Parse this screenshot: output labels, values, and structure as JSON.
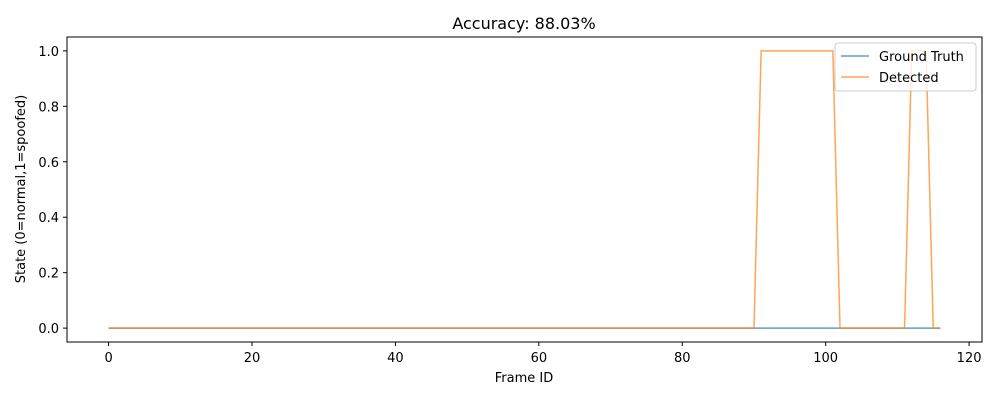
{
  "chart_data": {
    "type": "line",
    "title": "Accuracy: 88.03%",
    "xlabel": "Frame ID",
    "ylabel": "State (0=normal,1=spoofed)",
    "xlim": [
      -5.8,
      121.8
    ],
    "ylim": [
      -0.05,
      1.05
    ],
    "xticks": [
      0,
      20,
      40,
      60,
      80,
      100,
      120
    ],
    "yticks": [
      0.0,
      0.2,
      0.4,
      0.6,
      0.8,
      1.0
    ],
    "ytick_labels": [
      "0.0",
      "0.2",
      "0.4",
      "0.6",
      "0.8",
      "1.0"
    ],
    "grid": false,
    "legend_position": "top-right",
    "series": [
      {
        "name": "Ground Truth",
        "color": "#1f77b4",
        "points": [
          [
            0,
            0
          ],
          [
            116,
            0
          ]
        ]
      },
      {
        "name": "Detected",
        "color": "#ff7f0e",
        "points": [
          [
            0,
            0
          ],
          [
            90,
            0
          ],
          [
            91,
            1
          ],
          [
            101,
            1
          ],
          [
            102,
            0
          ],
          [
            111,
            0
          ],
          [
            112,
            1
          ],
          [
            114,
            1
          ],
          [
            115,
            0
          ],
          [
            116,
            0
          ]
        ]
      }
    ]
  }
}
